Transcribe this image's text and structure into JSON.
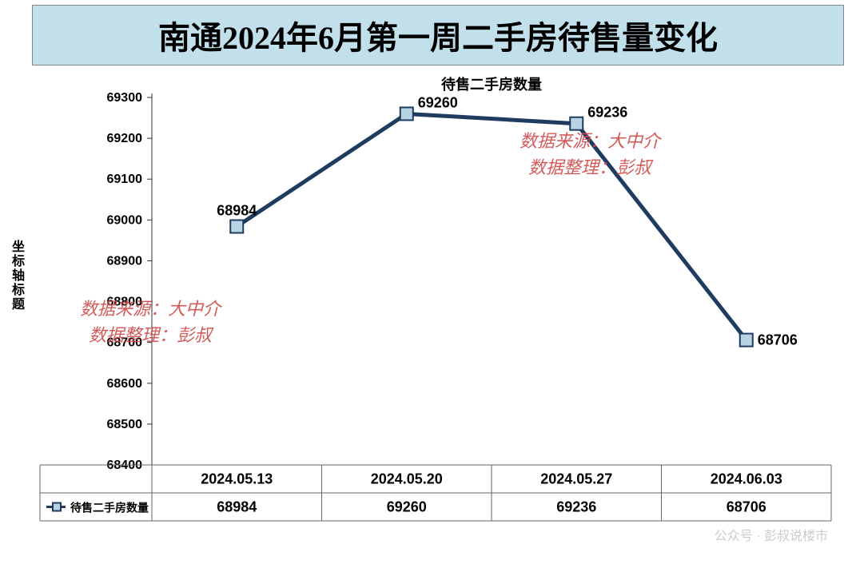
{
  "title": "南通2024年6月第一周二手房待售量变化",
  "chart": {
    "type": "line",
    "subtitle": "待售二手房数量",
    "yaxis_label": "坐标轴标题",
    "legend_label": "待售二手房数量",
    "categories": [
      "2024.05.13",
      "2024.05.20",
      "2024.05.27",
      "2024.06.03"
    ],
    "values": [
      68984,
      69260,
      69236,
      68706
    ],
    "ylim": [
      68400,
      69300
    ],
    "ytick_step": 100,
    "yticks": [
      68400,
      68500,
      68600,
      68700,
      68800,
      68900,
      69000,
      69100,
      69200,
      69300
    ],
    "line_color": "#1f3b5f",
    "line_width": 5,
    "marker_fill": "#b8d4e3",
    "marker_stroke": "#1f3b5f",
    "marker_size": 8,
    "background_color": "#ffffff",
    "title_bg": "#c2e0eb",
    "border_color": "#888888",
    "title_fontsize": 40,
    "subtitle_fontsize": 18,
    "label_fontsize": 18,
    "tick_fontsize": 16,
    "table_fontsize": 18
  },
  "watermarks": {
    "source_line": "数据来源：大中介",
    "author_line": "数据整理：彭叔",
    "footer": "公众号 · 彭叔说楼市"
  }
}
